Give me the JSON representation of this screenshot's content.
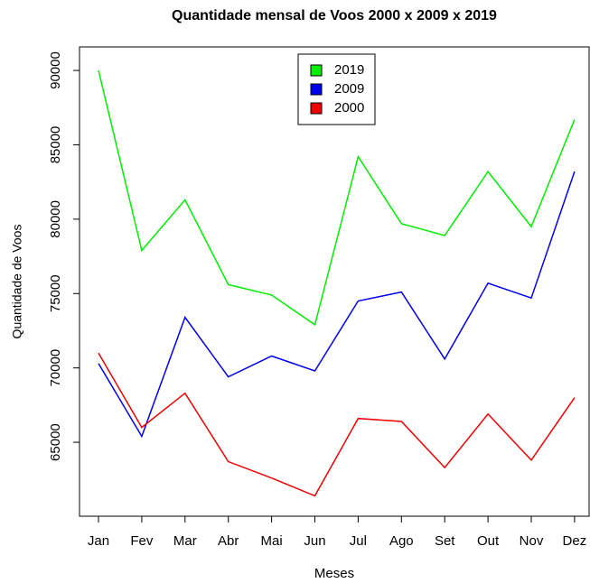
{
  "chart_data": {
    "type": "line",
    "title": "Quantidade mensal de Voos 2000 x 2009 x 2019",
    "x_label": "Meses",
    "y_label": "Quantidade de Voos",
    "categories": [
      "Jan",
      "Fev",
      "Mar",
      "Abr",
      "Mai",
      "Jun",
      "Jul",
      "Ago",
      "Set",
      "Out",
      "Nov",
      "Dez"
    ],
    "series": [
      {
        "name": "2019",
        "color": "#00ee00",
        "values": [
          90000,
          77900,
          81300,
          75600,
          74900,
          72900,
          84200,
          79700,
          78900,
          83200,
          79500,
          86700
        ]
      },
      {
        "name": "2009",
        "color": "#0000ee",
        "values": [
          70300,
          65400,
          73400,
          69400,
          70800,
          69800,
          74500,
          75100,
          70600,
          75700,
          74700,
          83200
        ]
      },
      {
        "name": "2000",
        "color": "#ee0000",
        "values": [
          71000,
          66000,
          68300,
          63700,
          62600,
          61400,
          66600,
          66400,
          63300,
          66900,
          63800,
          68000
        ]
      }
    ],
    "ylim": [
      60030,
      91580
    ],
    "yticks": [
      65000,
      70000,
      75000,
      80000,
      85000,
      90000
    ],
    "legend": "top-center"
  }
}
